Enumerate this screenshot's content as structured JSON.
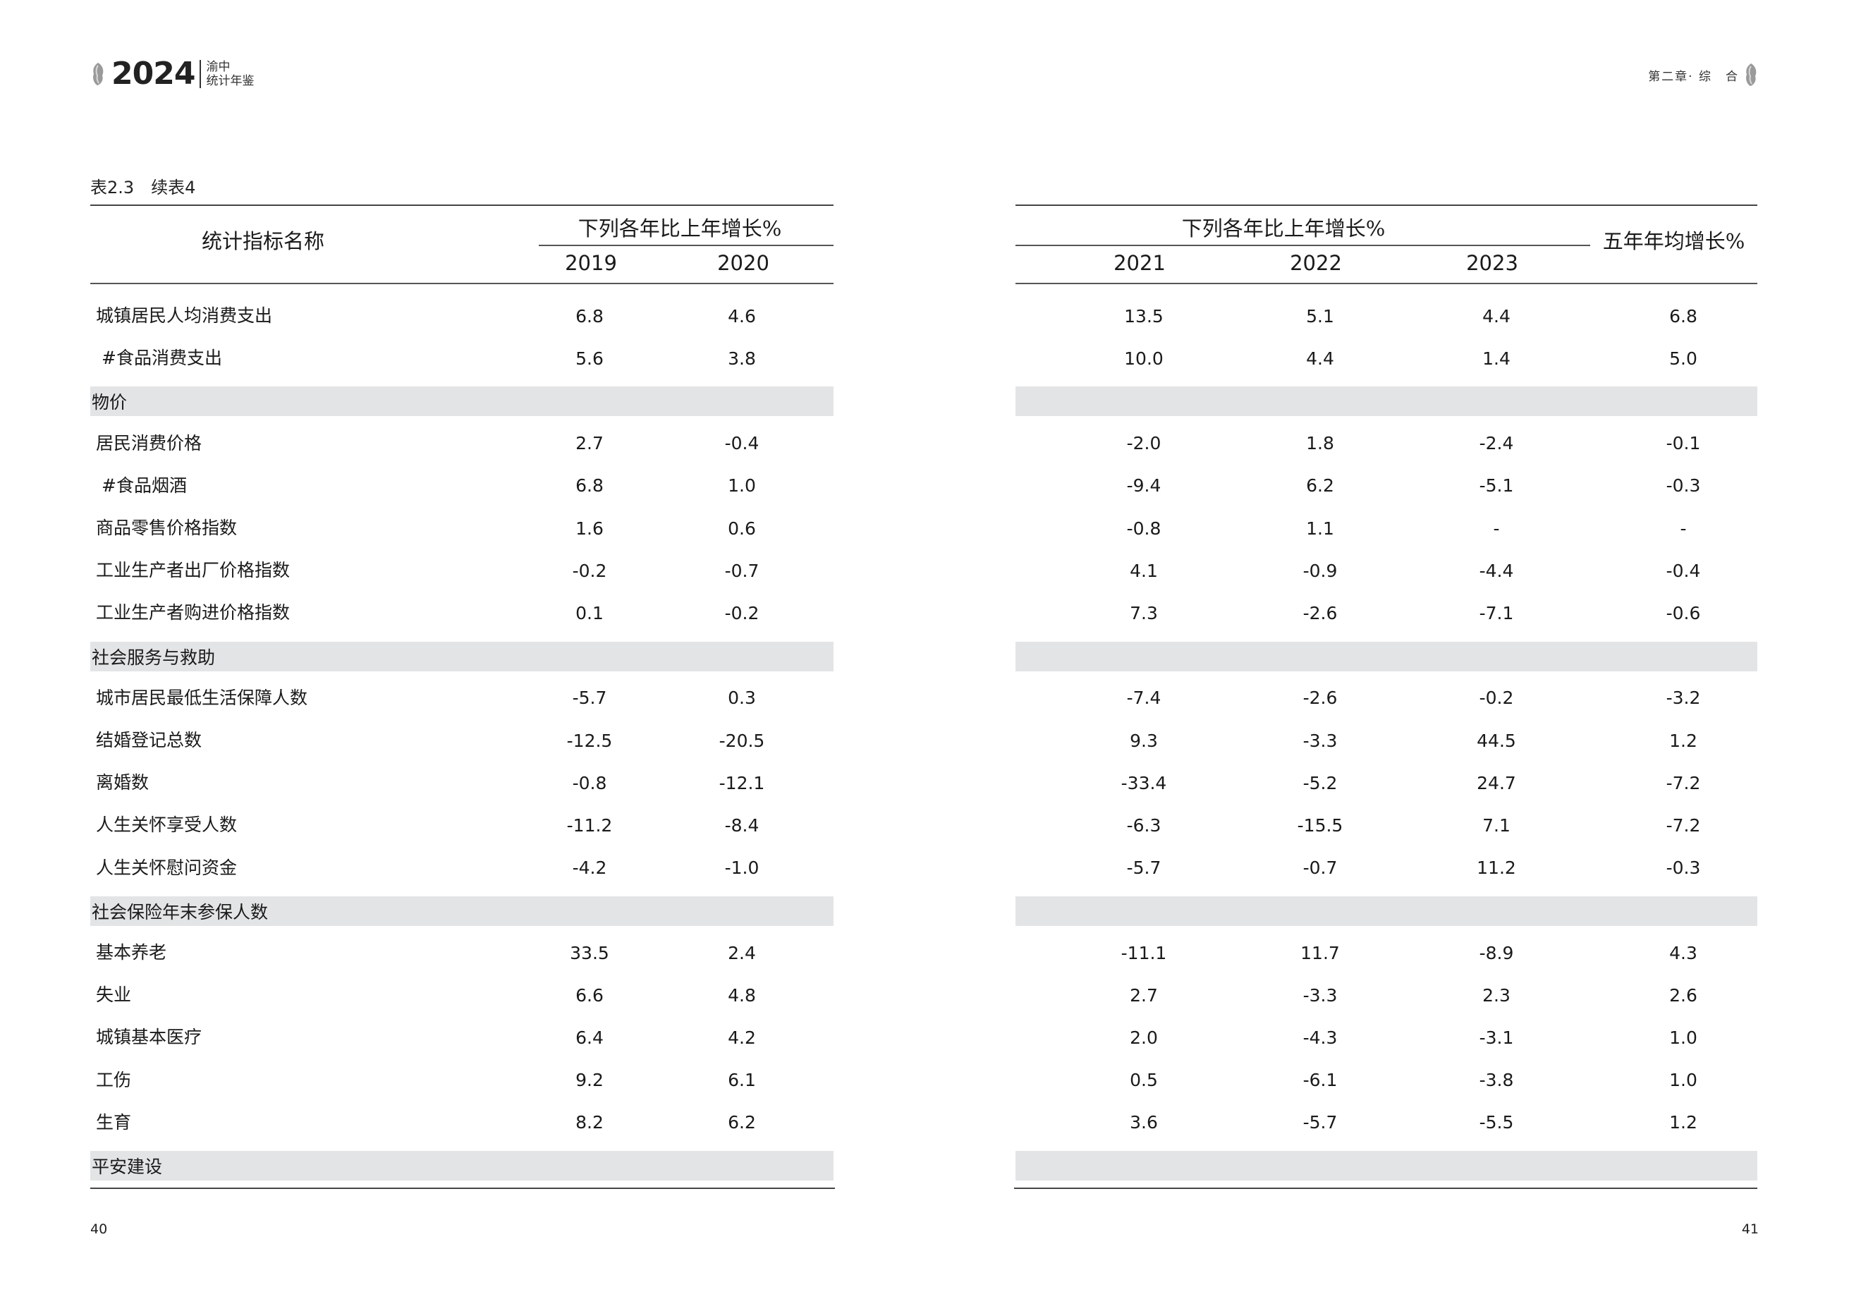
{
  "header": {
    "year": "2024",
    "subtitle_line1": "渝中",
    "subtitle_line2": "统计年鉴",
    "chapter": "第二章· 综　合"
  },
  "table_title": "表2.3　续表4",
  "columns": {
    "indicator": "统计指标名称",
    "group_label": "下列各年比上年增长%",
    "years_left": [
      "2019",
      "2020"
    ],
    "years_right": [
      "2021",
      "2022",
      "2023"
    ],
    "avg": "五年年均增长%"
  },
  "rows": [
    {
      "type": "data",
      "label": "城镇居民人均消费支出",
      "values": [
        "6.8",
        "4.6",
        "13.5",
        "5.1",
        "4.4",
        "6.8"
      ]
    },
    {
      "type": "data",
      "label": " #食品消费支出",
      "values": [
        "5.6",
        "3.8",
        "10.0",
        "4.4",
        "1.4",
        "5.0"
      ]
    },
    {
      "type": "section",
      "label": "物价"
    },
    {
      "type": "data",
      "label": "居民消费价格",
      "values": [
        "2.7",
        "-0.4",
        "-2.0",
        "1.8",
        "-2.4",
        "-0.1"
      ]
    },
    {
      "type": "data",
      "label": " #食品烟酒",
      "values": [
        "6.8",
        "1.0",
        "-9.4",
        "6.2",
        "-5.1",
        "-0.3"
      ]
    },
    {
      "type": "data",
      "label": "商品零售价格指数",
      "values": [
        "1.6",
        "0.6",
        "-0.8",
        "1.1",
        "-",
        "-"
      ]
    },
    {
      "type": "data",
      "label": "工业生产者出厂价格指数",
      "values": [
        "-0.2",
        "-0.7",
        "4.1",
        "-0.9",
        "-4.4",
        "-0.4"
      ]
    },
    {
      "type": "data",
      "label": "工业生产者购进价格指数",
      "values": [
        "0.1",
        "-0.2",
        "7.3",
        "-2.6",
        "-7.1",
        "-0.6"
      ]
    },
    {
      "type": "section",
      "label": "社会服务与救助"
    },
    {
      "type": "data",
      "label": "城市居民最低生活保障人数",
      "values": [
        "-5.7",
        "0.3",
        "-7.4",
        "-2.6",
        "-0.2",
        "-3.2"
      ]
    },
    {
      "type": "data",
      "label": "结婚登记总数",
      "values": [
        "-12.5",
        "-20.5",
        "9.3",
        "-3.3",
        "44.5",
        "1.2"
      ]
    },
    {
      "type": "data",
      "label": "离婚数",
      "values": [
        "-0.8",
        "-12.1",
        "-33.4",
        "-5.2",
        "24.7",
        "-7.2"
      ]
    },
    {
      "type": "data",
      "label": "人生关怀享受人数",
      "values": [
        "-11.2",
        "-8.4",
        "-6.3",
        "-15.5",
        "7.1",
        "-7.2"
      ]
    },
    {
      "type": "data",
      "label": "人生关怀慰问资金",
      "values": [
        "-4.2",
        "-1.0",
        "-5.7",
        "-0.7",
        "11.2",
        "-0.3"
      ]
    },
    {
      "type": "section",
      "label": "社会保险年末参保人数"
    },
    {
      "type": "data",
      "label": "基本养老",
      "values": [
        "33.5",
        "2.4",
        "-11.1",
        "11.7",
        "-8.9",
        "4.3"
      ]
    },
    {
      "type": "data",
      "label": "失业",
      "values": [
        "6.6",
        "4.8",
        "2.7",
        "-3.3",
        "2.3",
        "2.6"
      ]
    },
    {
      "type": "data",
      "label": "城镇基本医疗",
      "values": [
        "6.4",
        "4.2",
        "2.0",
        "-4.3",
        "-3.1",
        "1.0"
      ]
    },
    {
      "type": "data",
      "label": "工伤",
      "values": [
        "9.2",
        "6.1",
        "0.5",
        "-6.1",
        "-3.8",
        "1.0"
      ]
    },
    {
      "type": "data",
      "label": "生育",
      "values": [
        "8.2",
        "6.2",
        "3.6",
        "-5.7",
        "-5.5",
        "1.2"
      ]
    },
    {
      "type": "section",
      "label": "平安建设"
    }
  ],
  "page_numbers": {
    "left": "40",
    "right": "41"
  },
  "colors": {
    "section_band": "#e3e4e5",
    "rule": "#444444"
  }
}
